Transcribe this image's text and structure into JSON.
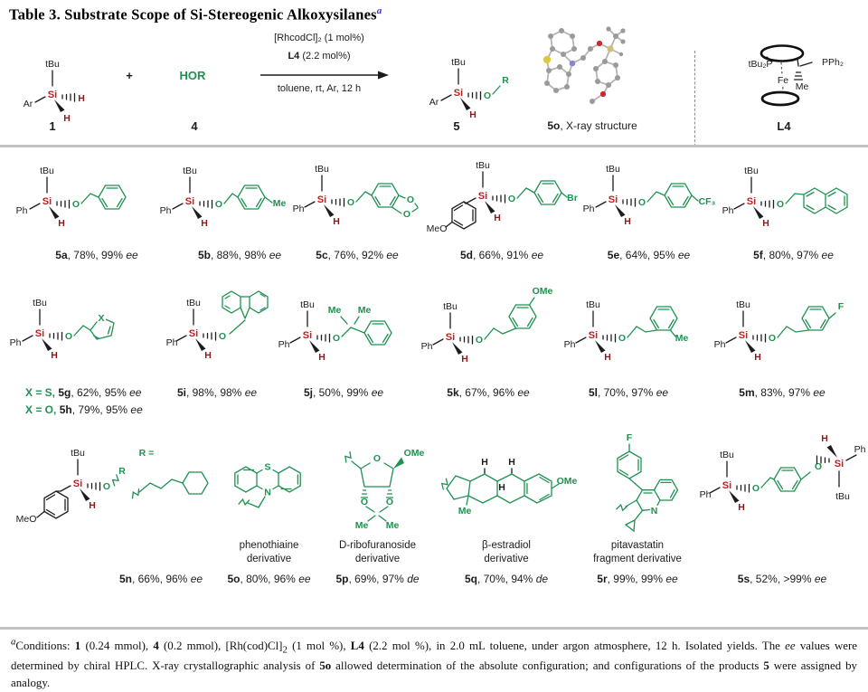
{
  "title": {
    "text": "Table 3. Substrate Scope of Si-Stereogenic Alkoxysilanes",
    "footnote_mark": "a"
  },
  "colors": {
    "green": "#1f9150",
    "si_red": "#c0201f",
    "h_maroon": "#8a1a1a",
    "marker_blue": "#3434c8",
    "rule_gray": "#c2c2c2"
  },
  "atoms": {
    "tbu": "tBu",
    "si": "Si",
    "h": "H",
    "ph": "Ph",
    "o": "O",
    "ar": "Ar",
    "r": "R",
    "plus": "+"
  },
  "scheme": {
    "reactant_label": "1",
    "alcohol": "HOR",
    "alcohol_label": "4",
    "cond_line1": "[RhcodCl]₂ (1 mol%)",
    "cond_line2_bold": "L4",
    "cond_line2_rest": " (2.2 mol%)",
    "cond_line3": "toluene, rt, Ar, 12 h",
    "product_label": "5",
    "xray_bold": "5o",
    "xray_rest": ", X-ray structure",
    "ligand": {
      "label": "L4",
      "p_left": "tBu₂P",
      "p_right": "PPh₂",
      "fe": "Fe",
      "me": "Me"
    }
  },
  "products": [
    {
      "id": "5a",
      "result": ", 78%, 99% ",
      "unit": "ee"
    },
    {
      "id": "5b",
      "result": ", 88%, 98% ",
      "unit": "ee",
      "me": "Me"
    },
    {
      "id": "5c",
      "result": ", 76%, 92% ",
      "unit": "ee",
      "o1": "O",
      "o2": "O"
    },
    {
      "id": "5d",
      "result": ", 66%, 91% ",
      "unit": "ee",
      "meo": "MeO",
      "br": "Br"
    },
    {
      "id": "5e",
      "result": ", 64%, 95% ",
      "unit": "ee",
      "cf3": "CF₃"
    },
    {
      "id": "5f",
      "result": ", 80%, 97% ",
      "unit": "ee"
    },
    {
      "id": "5g",
      "prefix": "X = S, ",
      "result": ", 62%, 95% ",
      "unit": "ee",
      "x": "X"
    },
    {
      "id": "5h",
      "prefix": "X = O, ",
      "result": ", 79%, 95% ",
      "unit": "ee"
    },
    {
      "id": "5i",
      "result": ", 98%, 98% ",
      "unit": "ee"
    },
    {
      "id": "5j",
      "result": ", 50%, 99% ",
      "unit": "ee",
      "me1": "Me",
      "me2": "Me"
    },
    {
      "id": "5k",
      "result": ", 67%, 96% ",
      "unit": "ee",
      "ome": "OMe"
    },
    {
      "id": "5l",
      "result": ", 70%, 97% ",
      "unit": "ee",
      "me": "Me"
    },
    {
      "id": "5m",
      "result": ", 83%, 97% ",
      "unit": "ee",
      "f": "F"
    },
    {
      "id": "5n",
      "result": ", 66%, 96% ",
      "unit": "ee",
      "meo": "MeO",
      "r_eq": "R =",
      "r": "R"
    },
    {
      "id": "5o",
      "result": ", 80%, 96% ",
      "unit": "ee",
      "cap1": "phenothiaine",
      "cap2": "derivative",
      "s": "S",
      "n": "N"
    },
    {
      "id": "5p",
      "result": ", 69%, 97% ",
      "unit": "de",
      "cap1": "D-ribofuranoside",
      "cap2": "derivative",
      "o": "O",
      "ome": "OMe",
      "o1": "O",
      "o2": "O",
      "me1": "Me",
      "me2": "Me"
    },
    {
      "id": "5q",
      "result": ", 70%, 94% ",
      "unit": "de",
      "cap1": "β-estradiol",
      "cap2": "derivative",
      "me": "Me",
      "ome": "OMe",
      "h1": "H",
      "h2": "H",
      "h3": "H"
    },
    {
      "id": "5r",
      "result": ", 99%, 99% ",
      "unit": "ee",
      "cap1": "pitavastatin",
      "cap2": "fragment derivative",
      "f": "F",
      "n": "N"
    },
    {
      "id": "5s",
      "result": ", 52%, >99% ",
      "unit": "ee"
    }
  ],
  "footnote": {
    "segments": [
      {
        "t": "a",
        "sup": true,
        "i": true
      },
      {
        "t": "Conditions: "
      },
      {
        "t": "1",
        "b": true
      },
      {
        "t": " (0.24 mmol), "
      },
      {
        "t": "4",
        "b": true
      },
      {
        "t": " (0.2 mmol), [Rh(cod)Cl]"
      },
      {
        "t": "2",
        "sub": true
      },
      {
        "t": " (1 mol %), "
      },
      {
        "t": "L4",
        "b": true
      },
      {
        "t": " (2.2 mol %), in 2.0 mL toluene, under argon atmosphere, 12 h. Isolated yields. The "
      },
      {
        "t": "ee",
        "i": true
      },
      {
        "t": " values were determined by chiral HPLC. X-ray crystallographic analysis of "
      },
      {
        "t": "5o",
        "b": true
      },
      {
        "t": " allowed determination of the absolute configuration; and configurations of the products "
      },
      {
        "t": "5",
        "b": true
      },
      {
        "t": " were assigned by analogy."
      }
    ]
  }
}
